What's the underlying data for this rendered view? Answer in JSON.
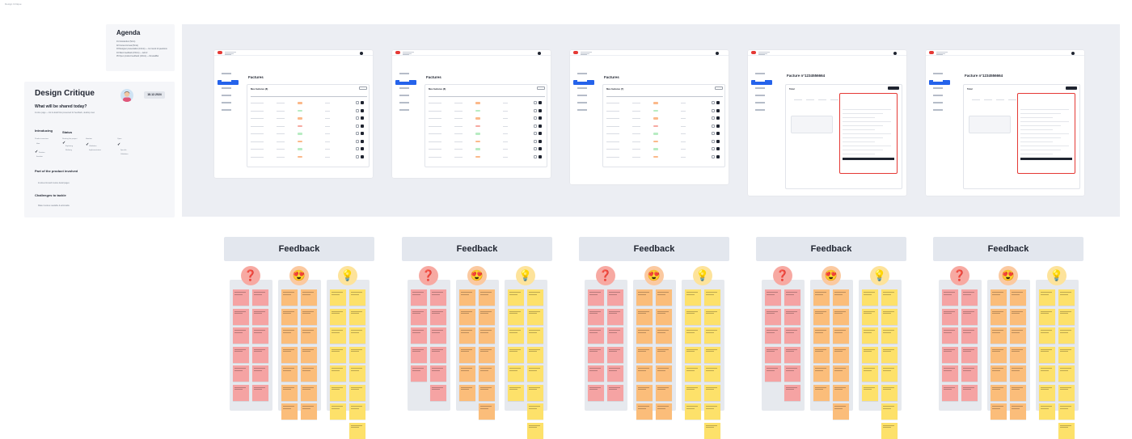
{
  "file_label": "Design Critique",
  "agenda": {
    "title": "Agenda",
    "items": [
      "01 Introduction (5min)",
      "02 Context & Goal (5min)",
      "03 Designer presentation (10min) — 1st round of questions",
      "04 Silent feedback (15min) — Add 2",
      "05 Open product feedback (10min) — ReviewBar"
    ]
  },
  "critique": {
    "title": "Design Critique",
    "date": "18.12.2024",
    "question": "What will be shared today?",
    "shared_text": "Invoice page — list & detail flow presented for feedback, desktop view",
    "introducing_label": "Introducing",
    "status_label": "Status",
    "introducing_options": [
      "Product overview",
      "Idea",
      "Feature",
      "Iteration"
    ],
    "status_options": [
      "Starting the project",
      "Exploring",
      "Refining",
      "Final stage"
    ],
    "project_stage_options": [
      "Ideation",
      "Validation",
      "Implementation"
    ],
    "feedback_options": [
      "Open",
      "Specific",
      "Validation"
    ],
    "part_title": "Part of the product involved",
    "part_text": "Invoices list and invoice detail pages",
    "challenges_title": "Challenges to tackle",
    "challenges_text": "Make invoices readable & actionable"
  },
  "screens": [
    {
      "title": "Factures",
      "subtitle": "Mes factures (8)",
      "type": "list"
    },
    {
      "title": "Factures",
      "subtitle": "Mes factures (8)",
      "type": "list"
    },
    {
      "title": "Factures",
      "subtitle": "Mes factures (7)",
      "type": "list"
    },
    {
      "title": "Facture n°1234556664",
      "subtitle": "Total",
      "type": "detail"
    },
    {
      "title": "Facture n°1234556664",
      "subtitle": "Total",
      "type": "detail"
    }
  ],
  "feedback": {
    "title": "Feedback",
    "columns": [
      {
        "icon": "question-icon",
        "glyph": "❓",
        "bg": "#f7a9a2",
        "note": "#f5a3a3"
      },
      {
        "icon": "heart-eyes-icon",
        "glyph": "😍",
        "bg": "#fbc9a0",
        "note": "#fbbd7a"
      },
      {
        "icon": "lightbulb-icon",
        "glyph": "💡",
        "bg": "#fde39b",
        "note": "#fde16a"
      }
    ]
  },
  "colors": {
    "accent": "#2563eb",
    "brand": "#e53935",
    "panel": "#eceef3"
  }
}
